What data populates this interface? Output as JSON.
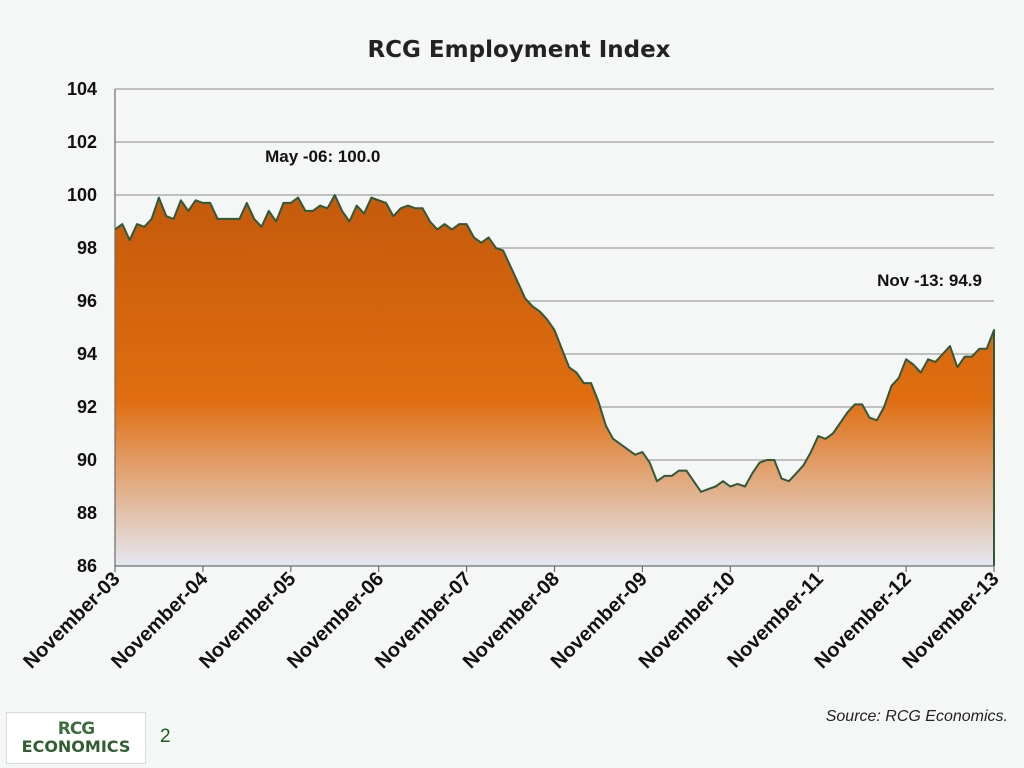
{
  "chart_data": {
    "type": "area",
    "title": "RCG Employment Index",
    "xlabel": "",
    "ylabel": "",
    "ylim": [
      86,
      104
    ],
    "yticks": [
      "86",
      "88",
      "90",
      "92",
      "94",
      "96",
      "98",
      "100",
      "102",
      "104"
    ],
    "xticks": [
      "November-03",
      "November-04",
      "November-05",
      "November-06",
      "November-07",
      "November-08",
      "November-09",
      "November-10",
      "November-11",
      "November-12",
      "November-13"
    ],
    "grid": true,
    "x_start": "2003-11",
    "x_end": "2013-11",
    "values": [
      98.7,
      98.9,
      98.3,
      98.9,
      98.8,
      99.1,
      99.9,
      99.2,
      99.1,
      99.8,
      99.4,
      99.8,
      99.7,
      99.7,
      99.1,
      99.1,
      99.1,
      99.1,
      99.7,
      99.1,
      98.8,
      99.4,
      99.0,
      99.7,
      99.7,
      99.9,
      99.4,
      99.4,
      99.6,
      99.5,
      100.0,
      99.4,
      99.0,
      99.6,
      99.3,
      99.9,
      99.8,
      99.7,
      99.2,
      99.5,
      99.6,
      99.5,
      99.5,
      99.0,
      98.7,
      98.9,
      98.7,
      98.9,
      98.9,
      98.4,
      98.2,
      98.4,
      98.0,
      97.9,
      97.3,
      96.7,
      96.1,
      95.8,
      95.6,
      95.3,
      94.9,
      94.2,
      93.5,
      93.3,
      92.9,
      92.9,
      92.2,
      91.3,
      90.8,
      90.6,
      90.4,
      90.2,
      90.3,
      89.9,
      89.2,
      89.4,
      89.4,
      89.6,
      89.6,
      89.2,
      88.8,
      88.9,
      89.0,
      89.2,
      89.0,
      89.1,
      89.0,
      89.5,
      89.9,
      90.0,
      90.0,
      89.3,
      89.2,
      89.5,
      89.8,
      90.3,
      90.9,
      90.8,
      91.0,
      91.4,
      91.8,
      92.1,
      92.1,
      91.6,
      91.5,
      92.0,
      92.8,
      93.1,
      93.8,
      93.6,
      93.3,
      93.8,
      93.7,
      94.0,
      94.3,
      93.5,
      93.9,
      93.9,
      94.2,
      94.2,
      94.9
    ],
    "annotations": [
      {
        "text": "May -06: 100.0",
        "index": 30
      },
      {
        "text": "Nov -13: 94.9",
        "index": 120
      }
    ],
    "colors": {
      "fill_top": "#c45a0c",
      "fill_mid": "#e06d10",
      "fill_bottom": "#e4e8f2",
      "line": "#2e5a3a"
    }
  },
  "footer": {
    "logo_top": "RCG",
    "logo_bottom": "ECONOMICS",
    "page_number": "2",
    "source": "Source: RCG Economics."
  }
}
